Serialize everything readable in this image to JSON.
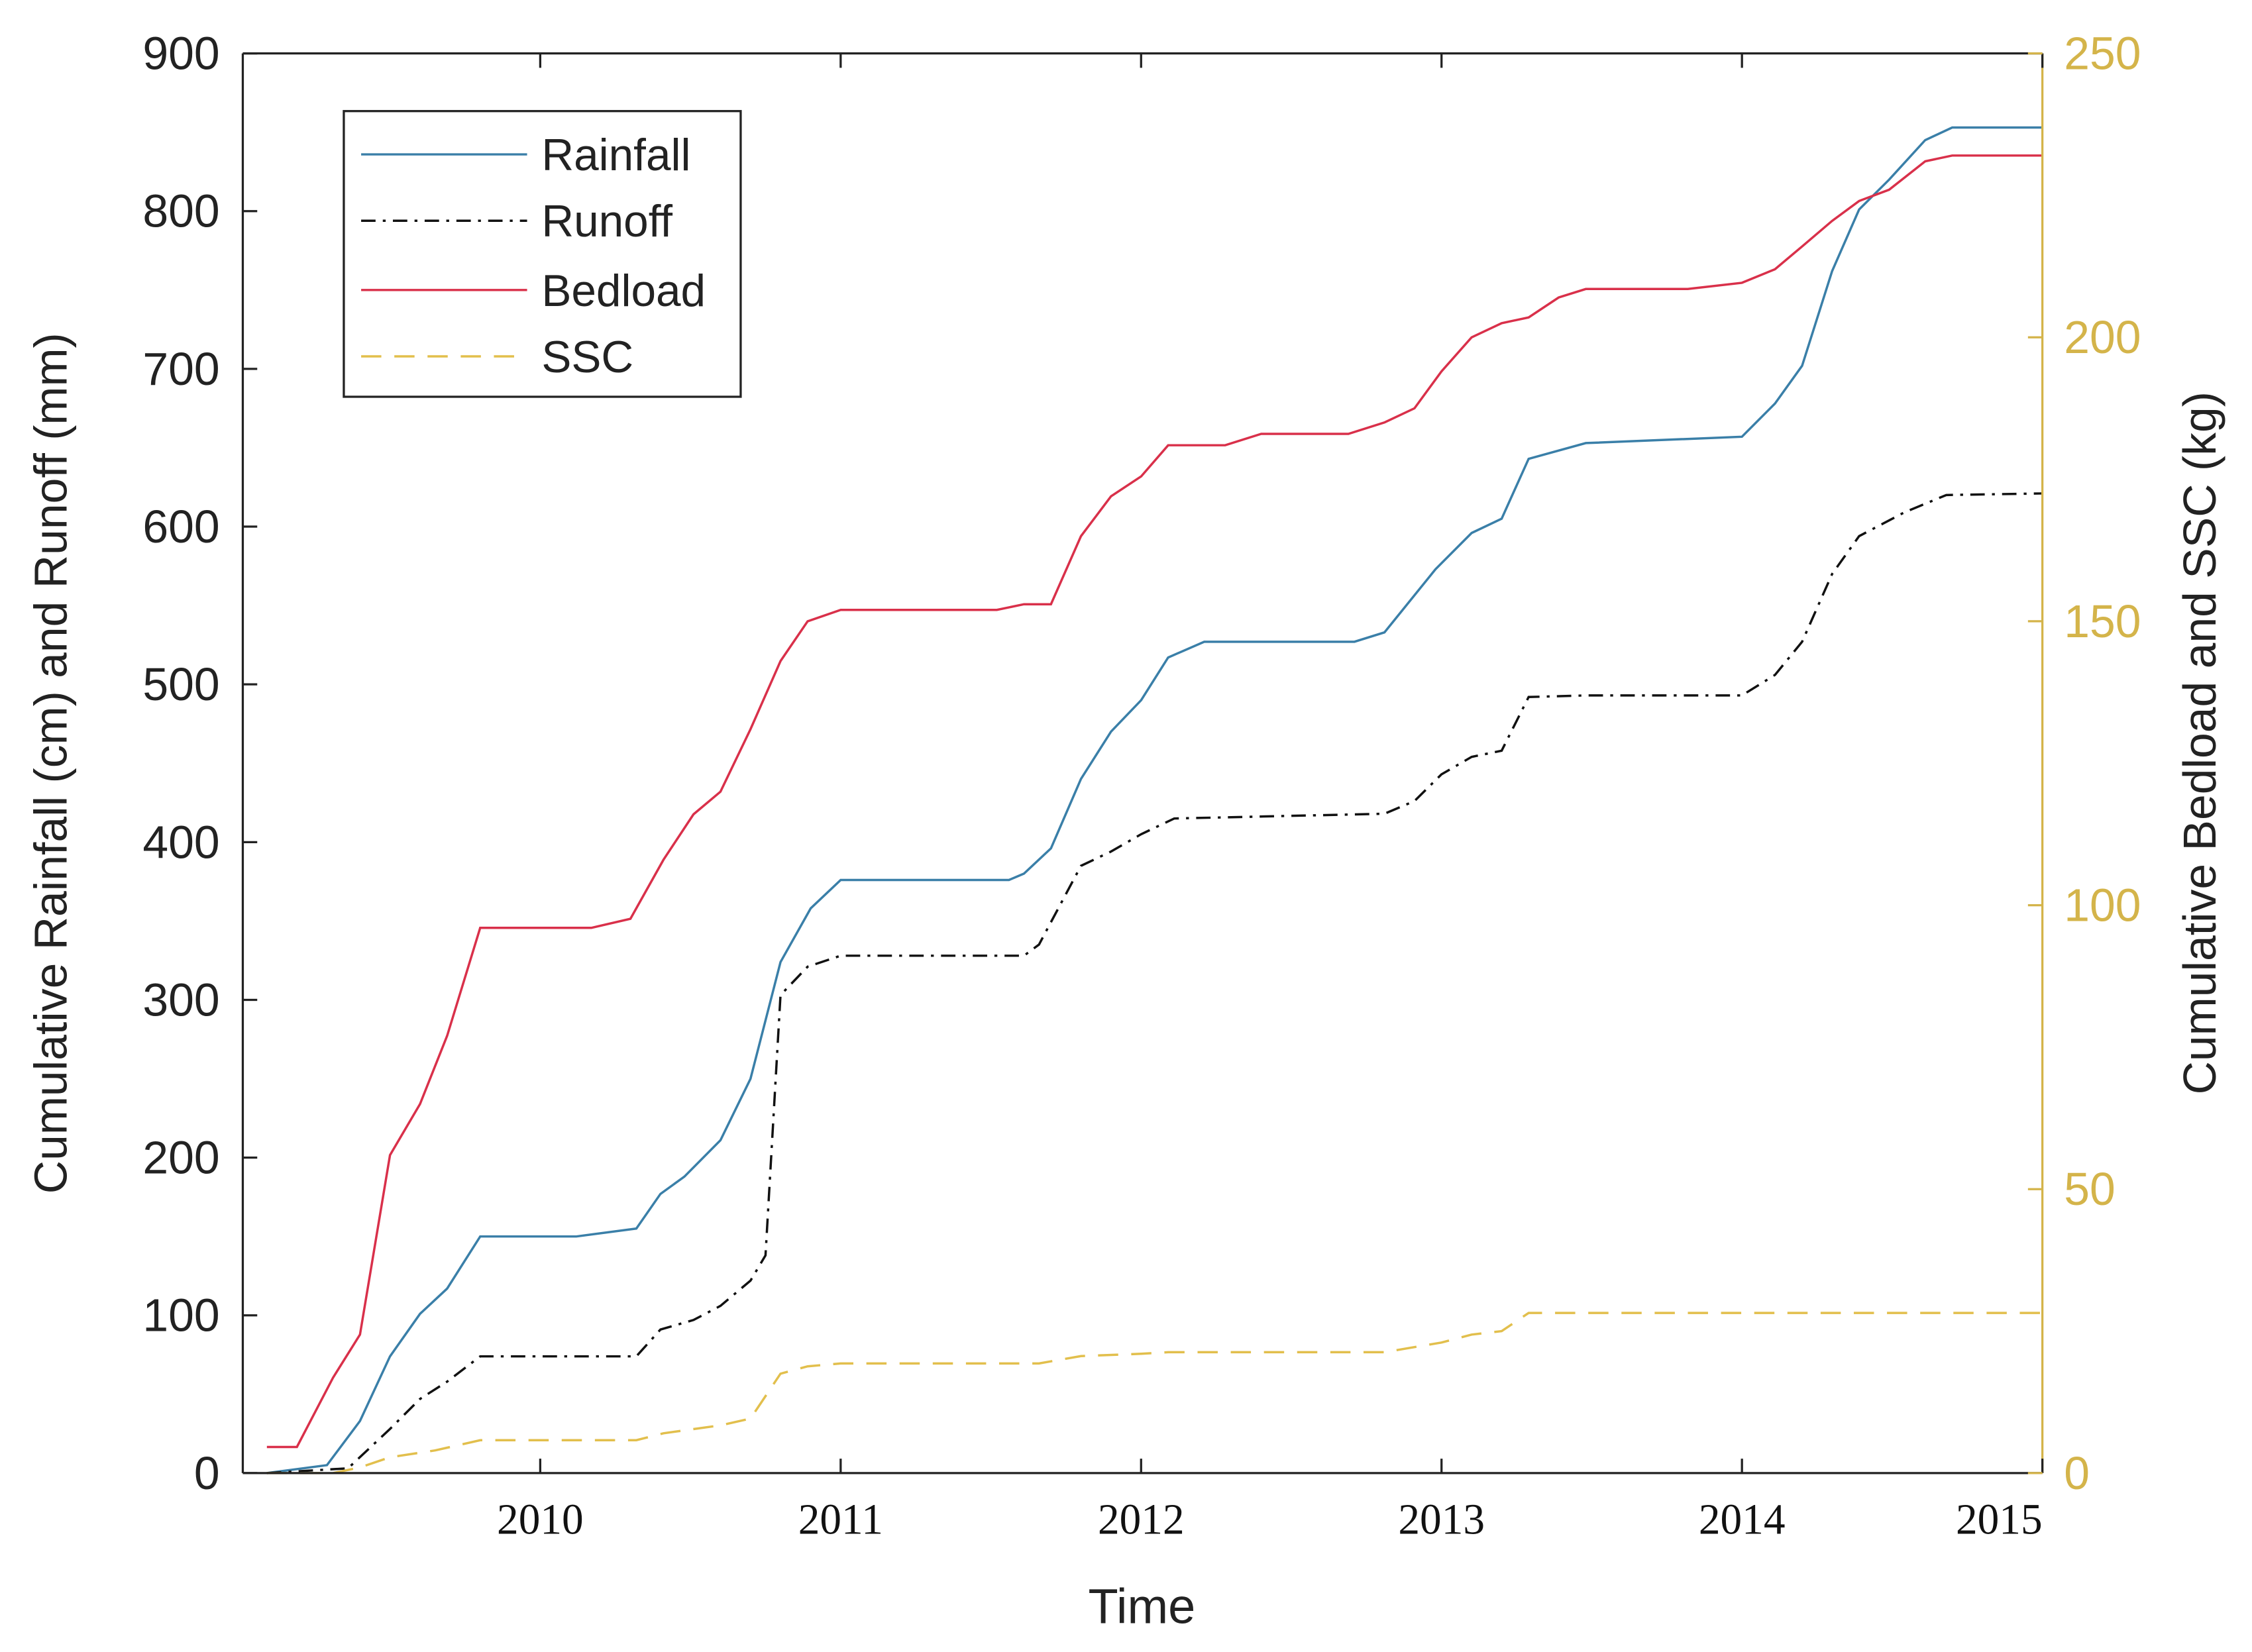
{
  "chart_data": {
    "type": "line",
    "xlabel": "Time",
    "ylabel": "Cumulative Rainfall (cm) and Runoff (mm)",
    "ylabel_right": "Cumulative Bedload and SSC (kg)",
    "xlim": [
      2009.01,
      2015.0
    ],
    "ylim": [
      0,
      900
    ],
    "ylim_right": [
      0,
      250
    ],
    "x_ticks": [
      "2010",
      "2011",
      "2012",
      "2013",
      "2014",
      "2015"
    ],
    "y_ticks": [
      "0",
      "100",
      "200",
      "300",
      "400",
      "500",
      "600",
      "700",
      "800",
      "900"
    ],
    "y_ticks_right": [
      "0",
      "50",
      "100",
      "150",
      "200",
      "250"
    ],
    "grid": false,
    "legend_position": "top-left",
    "right_axis_color": "#d4b44a",
    "series": [
      {
        "name": "Rainfall",
        "axis": "left",
        "color": "#3a7fa8",
        "style": "solid",
        "x": [
          2009.09,
          2009.29,
          2009.4,
          2009.5,
          2009.6,
          2009.69,
          2009.8,
          2010.12,
          2010.32,
          2010.4,
          2010.48,
          2010.6,
          2010.7,
          2010.8,
          2010.9,
          2011.0,
          2011.56,
          2011.61,
          2011.7,
          2011.8,
          2011.9,
          2012.0,
          2012.09,
          2012.21,
          2012.71,
          2012.81,
          2012.98,
          2013.1,
          2013.2,
          2013.29,
          2013.48,
          2014.0,
          2014.11,
          2014.2,
          2014.3,
          2014.39,
          2014.49,
          2014.61,
          2014.7,
          2015.0
        ],
        "y": [
          0,
          5,
          33,
          74,
          101,
          117,
          150,
          150,
          155,
          177,
          188,
          211,
          250,
          324,
          358,
          376,
          376,
          380,
          396,
          440,
          470,
          490,
          517,
          527,
          527,
          533,
          573,
          596,
          605,
          643,
          653,
          657,
          678,
          702,
          762,
          801,
          820,
          845,
          853,
          853
        ]
      },
      {
        "name": "Runoff",
        "axis": "left",
        "color": "#111111",
        "style": "dash-dot",
        "x": [
          2009.09,
          2009.36,
          2009.5,
          2009.6,
          2009.69,
          2009.8,
          2010.32,
          2010.4,
          2010.51,
          2010.6,
          2010.7,
          2010.75,
          2010.8,
          2010.89,
          2011.0,
          2011.61,
          2011.66,
          2011.8,
          2011.9,
          2012.0,
          2012.11,
          2012.81,
          2012.91,
          2013.0,
          2013.1,
          2013.2,
          2013.29,
          2013.48,
          2014.0,
          2014.11,
          2014.2,
          2014.3,
          2014.39,
          2014.54,
          2014.68,
          2015.0
        ],
        "y": [
          0,
          3,
          28,
          47,
          58,
          74,
          74,
          91,
          97,
          106,
          122,
          138,
          303,
          321,
          328,
          328,
          335,
          385,
          394,
          405,
          415,
          418,
          426,
          443,
          454,
          458,
          492,
          493,
          493,
          506,
          527,
          570,
          594,
          609,
          620,
          621
        ]
      },
      {
        "name": "Bedload",
        "axis": "right",
        "color": "#d9304a",
        "style": "solid",
        "x": [
          2009.09,
          2009.19,
          2009.31,
          2009.4,
          2009.5,
          2009.6,
          2009.69,
          2009.8,
          2010.17,
          2010.3,
          2010.41,
          2010.51,
          2010.6,
          2010.7,
          2010.8,
          2010.89,
          2011.0,
          2011.52,
          2011.61,
          2011.7,
          2011.8,
          2011.9,
          2012.0,
          2012.09,
          2012.28,
          2012.4,
          2012.69,
          2012.81,
          2012.91,
          2013.0,
          2013.1,
          2013.2,
          2013.29,
          2013.39,
          2013.48,
          2013.82,
          2014.0,
          2014.11,
          2014.2,
          2014.3,
          2014.39,
          2014.49,
          2014.61,
          2014.7,
          2015.0
        ],
        "y": [
          4.6,
          4.6,
          16.8,
          24.4,
          56,
          65,
          77,
          96,
          96,
          97.6,
          108,
          116,
          120,
          131,
          143,
          150,
          152,
          152,
          153,
          153,
          165,
          172,
          175.5,
          181,
          181,
          183,
          183,
          185,
          187.5,
          194,
          200,
          202.5,
          203.5,
          207,
          208.5,
          208.5,
          209.6,
          212,
          216,
          220.5,
          224,
          226,
          231,
          232,
          232
        ]
      },
      {
        "name": "SSC",
        "axis": "right",
        "color": "#e2bf4c",
        "style": "dashed",
        "x": [
          2009.09,
          2009.31,
          2009.4,
          2009.5,
          2009.65,
          2009.8,
          2010.32,
          2010.41,
          2010.6,
          2010.7,
          2010.8,
          2010.89,
          2011.0,
          2011.66,
          2011.8,
          2012.0,
          2012.09,
          2012.81,
          2013.0,
          2013.1,
          2013.2,
          2013.29,
          2015.0
        ],
        "y": [
          0,
          0,
          1,
          2.8,
          4,
          5.8,
          5.8,
          7,
          8.4,
          9.6,
          17.5,
          18.8,
          19.3,
          19.3,
          20.6,
          21,
          21.3,
          21.3,
          23,
          24.4,
          25,
          28.2,
          28.2
        ]
      }
    ]
  }
}
